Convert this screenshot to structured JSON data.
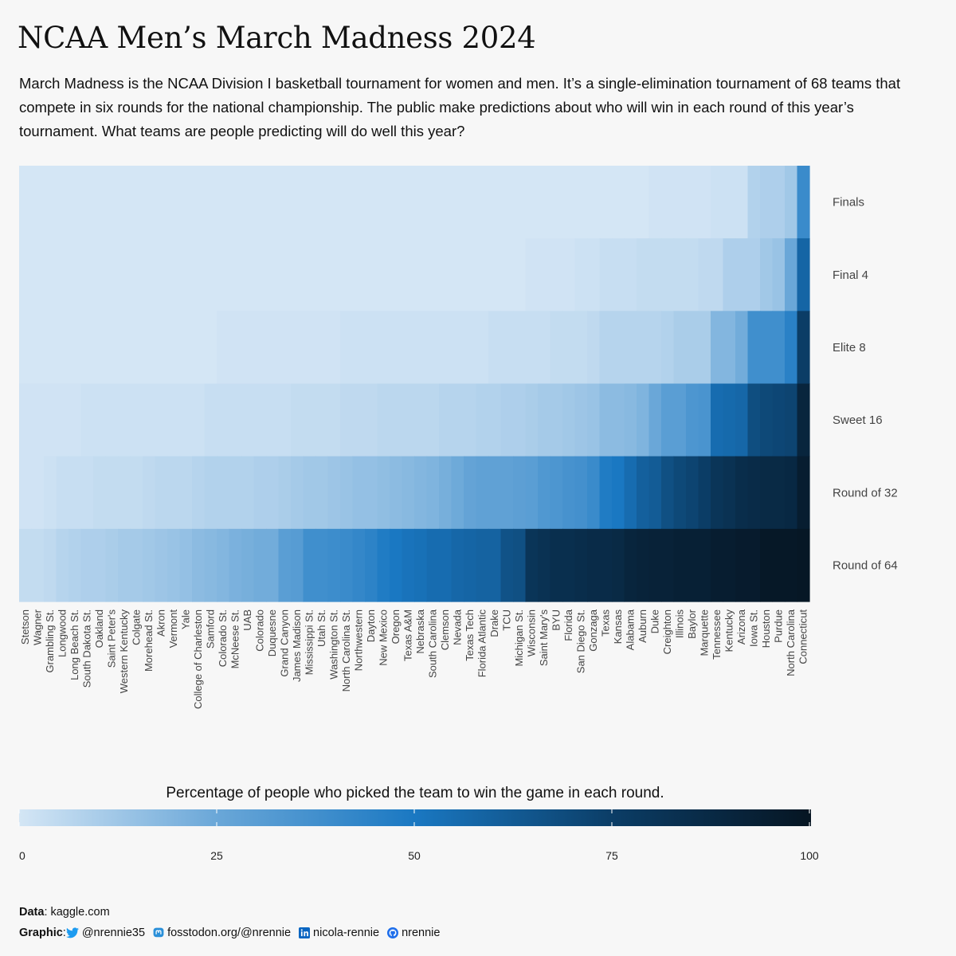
{
  "title": "NCAA Men’s March Madness 2024",
  "subtitle": "March Madness is the NCAA Division I basketball tournament for women and men. It’s a single-elimination tournament of 68 teams that compete in six rounds for the national championship. The public make predictions about who will win in each round of this year’s tournament. What teams are people predicting will do well this year?",
  "legend": {
    "title": "Percentage of people who picked the team to win the game in each round.",
    "ticks": [
      "0",
      "25",
      "50",
      "75",
      "100"
    ],
    "tick_values": [
      0,
      25,
      50,
      75,
      100
    ],
    "color_low": "#d4e6f5",
    "color_mid1": "#6aa7d8",
    "color_mid2": "#1a78c2",
    "color_mid3": "#0b3d66",
    "color_high": "#061522"
  },
  "caption": {
    "data_label": "Data",
    "data_value": ": kaggle.com",
    "graphic_label": "Graphic",
    "graphic_sep": ":",
    "twitter": "@nrennie35",
    "mastodon": "fosstodon.org/@nrennie",
    "linkedin": "nicola-rennie",
    "github": "nrennie"
  },
  "chart_data": {
    "type": "heatmap",
    "title": "NCAA Men’s March Madness 2024",
    "xlabel": "",
    "ylabel": "",
    "value_range": [
      0,
      100
    ],
    "rows": [
      "Finals",
      "Final 4",
      "Elite 8",
      "Sweet 16",
      "Round of 32",
      "Round of 64"
    ],
    "teams": [
      "Stetson",
      "Wagner",
      "Grambling St.",
      "Longwood",
      "Long Beach St.",
      "South Dakota St.",
      "Oakland",
      "Saint Peter's",
      "Western Kentucky",
      "Colgate",
      "Morehead St.",
      "Akron",
      "Vermont",
      "Yale",
      "College of Charleston",
      "Samford",
      "Colorado St.",
      "McNeese St.",
      "UAB",
      "Colorado",
      "Duquesne",
      "Grand Canyon",
      "James Madison",
      "Mississippi St.",
      "Utah St.",
      "Washington St.",
      "North Carolina St.",
      "Northwestern",
      "Dayton",
      "New Mexico",
      "Oregon",
      "Texas A&M",
      "Nebraska",
      "South Carolina",
      "Clemson",
      "Nevada",
      "Texas Tech",
      "Florida Atlantic",
      "Drake",
      "TCU",
      "Michigan St.",
      "Wisconsin",
      "Saint Mary's",
      "BYU",
      "Florida",
      "San Diego St.",
      "Gonzaga",
      "Texas",
      "Kansas",
      "Alabama",
      "Auburn",
      "Duke",
      "Creighton",
      "Illinois",
      "Baylor",
      "Marquette",
      "Tennessee",
      "Kentucky",
      "Arizona",
      "Iowa St.",
      "Houston",
      "Purdue",
      "North Carolina",
      "Connecticut"
    ],
    "values": {
      "Finals": [
        0,
        0,
        0,
        0,
        0,
        0,
        0,
        0,
        0,
        0,
        0,
        0,
        0,
        0,
        0,
        0,
        0,
        0,
        0,
        0,
        0,
        0,
        0,
        0,
        0,
        0,
        0,
        0,
        0,
        0,
        0,
        0,
        0,
        0,
        0,
        0,
        0,
        0,
        0,
        0,
        0,
        0,
        0,
        0,
        0,
        0,
        0,
        0,
        0,
        0,
        0,
        1,
        1,
        1,
        1,
        1,
        2,
        2,
        2,
        8,
        9,
        9,
        12,
        40
      ],
      "Final 4": [
        0,
        0,
        0,
        0,
        0,
        0,
        0,
        0,
        0,
        0,
        0,
        0,
        0,
        0,
        0,
        0,
        0,
        0,
        0,
        0,
        0,
        0,
        0,
        0,
        0,
        0,
        0,
        0,
        0,
        0,
        0,
        0,
        0,
        0,
        0,
        0,
        0,
        0,
        0,
        0,
        0,
        1,
        1,
        1,
        1,
        2,
        2,
        3,
        3,
        3,
        4,
        4,
        4,
        4,
        4,
        5,
        5,
        9,
        9,
        9,
        12,
        14,
        25,
        58
      ],
      "Elite 8": [
        0,
        0,
        0,
        0,
        0,
        0,
        0,
        0,
        0,
        0,
        0,
        0,
        0,
        0,
        0,
        0,
        1,
        1,
        1,
        1,
        1,
        1,
        1,
        1,
        1,
        1,
        2,
        2,
        2,
        2,
        2,
        2,
        2,
        2,
        2,
        2,
        2,
        2,
        3,
        3,
        3,
        3,
        3,
        4,
        4,
        4,
        5,
        7,
        7,
        7,
        7,
        7,
        8,
        10,
        10,
        10,
        19,
        19,
        23,
        38,
        38,
        38,
        45,
        75
      ],
      "Sweet 16": [
        1,
        1,
        1,
        1,
        1,
        2,
        2,
        2,
        2,
        2,
        2,
        2,
        2,
        2,
        2,
        3,
        3,
        3,
        3,
        3,
        3,
        3,
        4,
        4,
        4,
        4,
        5,
        5,
        5,
        6,
        6,
        6,
        6,
        6,
        7,
        7,
        7,
        8,
        8,
        9,
        9,
        10,
        11,
        11,
        12,
        13,
        14,
        17,
        17,
        18,
        20,
        25,
        30,
        30,
        34,
        35,
        55,
        56,
        57,
        68,
        70,
        71,
        72,
        90
      ],
      "Round of 32": [
        1,
        1,
        2,
        3,
        3,
        3,
        4,
        4,
        4,
        4,
        5,
        6,
        6,
        6,
        7,
        8,
        8,
        8,
        8,
        9,
        9,
        10,
        11,
        12,
        12,
        13,
        14,
        15,
        15,
        16,
        17,
        18,
        19,
        20,
        22,
        24,
        27,
        28,
        28,
        28,
        29,
        30,
        33,
        34,
        36,
        37,
        40,
        48,
        50,
        55,
        60,
        62,
        67,
        70,
        72,
        75,
        80,
        82,
        85,
        86,
        87,
        87,
        88,
        95
      ],
      "Round of 64": [
        4,
        4,
        5,
        7,
        8,
        9,
        9,
        10,
        11,
        11,
        12,
        13,
        14,
        15,
        17,
        18,
        19,
        21,
        22,
        23,
        23,
        30,
        31,
        38,
        38,
        39,
        40,
        42,
        44,
        48,
        50,
        52,
        53,
        55,
        55,
        57,
        58,
        59,
        59,
        66,
        67,
        80,
        82,
        84,
        84,
        85,
        86,
        86,
        87,
        90,
        91,
        92,
        92,
        93,
        93,
        93,
        95,
        95,
        96,
        96,
        98,
        98,
        98,
        99
      ]
    }
  }
}
